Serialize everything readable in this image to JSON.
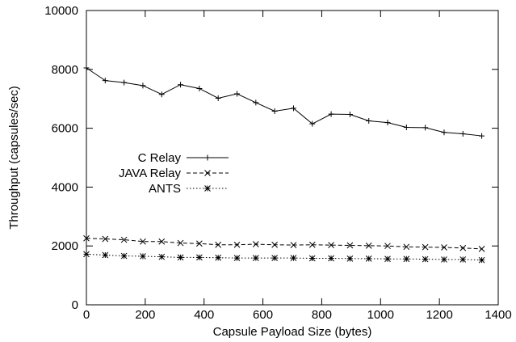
{
  "chart_data": {
    "type": "line",
    "title": "",
    "xlabel": "Capsule Payload Size (bytes)",
    "ylabel": "Throughput (capsules/sec)",
    "xlim": [
      0,
      1400
    ],
    "ylim": [
      0,
      10000
    ],
    "xticks": [
      0,
      200,
      400,
      600,
      800,
      1000,
      1200,
      1400
    ],
    "yticks": [
      0,
      2000,
      4000,
      6000,
      8000,
      10000
    ],
    "grid": false,
    "legend_position": "middle-left",
    "series": [
      {
        "name": "C Relay",
        "line_style": "solid",
        "marker": "plus",
        "x": [
          0,
          64,
          128,
          192,
          256,
          320,
          384,
          448,
          512,
          576,
          640,
          704,
          768,
          832,
          896,
          960,
          1024,
          1088,
          1152,
          1216,
          1280,
          1344
        ],
        "y": [
          8050,
          7620,
          7550,
          7450,
          7150,
          7480,
          7350,
          7020,
          7170,
          6870,
          6580,
          6680,
          6150,
          6480,
          6470,
          6250,
          6190,
          6030,
          6020,
          5860,
          5810,
          5740
        ]
      },
      {
        "name": "JAVA Relay",
        "line_style": "dashed",
        "marker": "cross",
        "x": [
          0,
          64,
          128,
          192,
          256,
          320,
          384,
          448,
          512,
          576,
          640,
          704,
          768,
          832,
          896,
          960,
          1024,
          1088,
          1152,
          1216,
          1280,
          1344
        ],
        "y": [
          2260,
          2240,
          2210,
          2150,
          2150,
          2100,
          2080,
          2040,
          2040,
          2060,
          2040,
          2030,
          2040,
          2030,
          2020,
          2010,
          2000,
          1970,
          1960,
          1950,
          1930,
          1900
        ]
      },
      {
        "name": "ANTS",
        "line_style": "dotted",
        "marker": "star",
        "x": [
          0,
          64,
          128,
          192,
          256,
          320,
          384,
          448,
          512,
          576,
          640,
          704,
          768,
          832,
          896,
          960,
          1024,
          1088,
          1152,
          1216,
          1280,
          1344
        ],
        "y": [
          1720,
          1690,
          1660,
          1650,
          1630,
          1610,
          1610,
          1600,
          1590,
          1590,
          1590,
          1590,
          1580,
          1580,
          1570,
          1570,
          1560,
          1560,
          1550,
          1540,
          1540,
          1520
        ]
      }
    ]
  }
}
